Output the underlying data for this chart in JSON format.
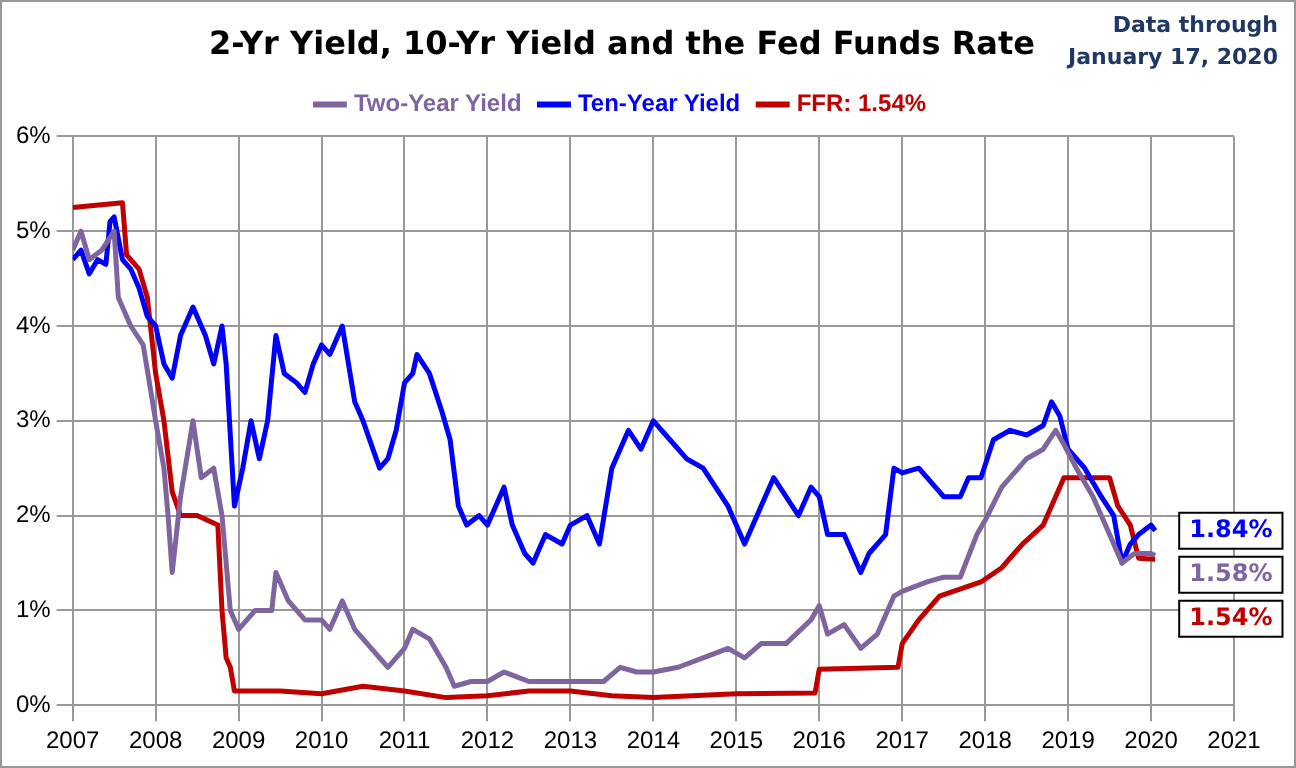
{
  "chart_data": {
    "type": "line",
    "title": "2-Yr Yield, 10-Yr Yield and the Fed Funds Rate",
    "xlim": [
      2007,
      2021
    ],
    "xticks": [
      2007,
      2008,
      2009,
      2010,
      2011,
      2012,
      2013,
      2014,
      2015,
      2016,
      2017,
      2018,
      2019,
      2020,
      2021
    ],
    "ylim": [
      0,
      6
    ],
    "yticks": [
      {
        "value": 0,
        "label": "0%"
      },
      {
        "value": 1,
        "label": "1%"
      },
      {
        "value": 2,
        "label": "2%"
      },
      {
        "value": 3,
        "label": "3%"
      },
      {
        "value": 4,
        "label": "4%"
      },
      {
        "value": 5,
        "label": "5%"
      },
      {
        "value": 6,
        "label": "6%"
      }
    ],
    "grid": true,
    "legend": "top",
    "marker": "none",
    "line_style": "solid",
    "annotations": [
      "Data through January 17, 2020"
    ],
    "series": [
      {
        "name": "Two-Year Yield",
        "color": "#7f659f",
        "x": [
          2007.0,
          2007.1,
          2007.2,
          2007.35,
          2007.5,
          2007.55,
          2007.7,
          2007.85,
          2008.0,
          2008.1,
          2008.15,
          2008.2,
          2008.3,
          2008.45,
          2008.55,
          2008.7,
          2008.8,
          2008.9,
          2009.0,
          2009.2,
          2009.4,
          2009.45,
          2009.6,
          2009.8,
          2010.0,
          2010.1,
          2010.25,
          2010.4,
          2010.6,
          2010.8,
          2011.0,
          2011.1,
          2011.3,
          2011.5,
          2011.6,
          2011.8,
          2012.0,
          2012.2,
          2012.5,
          2013.0,
          2013.4,
          2013.6,
          2013.8,
          2014.0,
          2014.3,
          2014.6,
          2014.9,
          2015.1,
          2015.3,
          2015.6,
          2015.9,
          2016.0,
          2016.1,
          2016.3,
          2016.5,
          2016.7,
          2016.9,
          2017.0,
          2017.3,
          2017.5,
          2017.7,
          2017.9,
          2018.0,
          2018.2,
          2018.5,
          2018.7,
          2018.85,
          2018.95,
          2019.1,
          2019.3,
          2019.5,
          2019.65,
          2019.8,
          2020.0,
          2020.05
        ],
        "values": [
          4.8,
          5.0,
          4.7,
          4.8,
          5.0,
          4.3,
          4.0,
          3.8,
          3.0,
          2.5,
          2.0,
          1.4,
          2.2,
          3.0,
          2.4,
          2.5,
          2.0,
          1.0,
          0.8,
          1.0,
          1.0,
          1.4,
          1.1,
          0.9,
          0.9,
          0.8,
          1.1,
          0.8,
          0.6,
          0.4,
          0.6,
          0.8,
          0.7,
          0.4,
          0.2,
          0.25,
          0.25,
          0.35,
          0.25,
          0.25,
          0.25,
          0.4,
          0.35,
          0.35,
          0.4,
          0.5,
          0.6,
          0.5,
          0.65,
          0.65,
          0.9,
          1.05,
          0.75,
          0.85,
          0.6,
          0.75,
          1.15,
          1.2,
          1.3,
          1.35,
          1.35,
          1.8,
          1.95,
          2.3,
          2.6,
          2.7,
          2.9,
          2.75,
          2.5,
          2.2,
          1.8,
          1.5,
          1.6,
          1.6,
          1.58
        ],
        "value_labels": [
          null,
          null,
          null,
          null,
          null,
          null,
          null,
          null,
          null,
          null,
          null,
          null,
          null,
          null,
          null,
          null,
          null,
          null,
          null,
          null,
          null,
          null,
          null,
          null,
          null,
          null,
          null,
          null,
          null,
          null,
          null,
          null,
          null,
          null,
          null,
          null,
          null,
          null,
          null,
          null,
          null,
          null,
          null,
          null,
          null,
          null,
          null,
          null,
          null,
          null,
          null,
          null,
          null,
          null,
          null,
          null,
          null,
          null,
          null,
          null,
          null,
          null,
          null,
          null,
          null,
          null,
          null,
          null,
          null,
          null,
          null,
          null,
          null,
          null,
          "1.58%"
        ]
      },
      {
        "name": "Ten-Year Yield",
        "color": "#0000ff",
        "x": [
          2007.0,
          2007.1,
          2007.2,
          2007.3,
          2007.4,
          2007.45,
          2007.5,
          2007.6,
          2007.7,
          2007.8,
          2007.9,
          2008.0,
          2008.1,
          2008.2,
          2008.3,
          2008.45,
          2008.6,
          2008.7,
          2008.8,
          2008.85,
          2008.95,
          2009.05,
          2009.15,
          2009.25,
          2009.35,
          2009.45,
          2009.55,
          2009.7,
          2009.8,
          2009.9,
          2010.0,
          2010.1,
          2010.25,
          2010.4,
          2010.5,
          2010.7,
          2010.8,
          2010.9,
          2011.0,
          2011.1,
          2011.15,
          2011.3,
          2011.45,
          2011.55,
          2011.65,
          2011.75,
          2011.9,
          2012.0,
          2012.2,
          2012.3,
          2012.45,
          2012.55,
          2012.7,
          2012.9,
          2013.0,
          2013.2,
          2013.35,
          2013.5,
          2013.7,
          2013.85,
          2014.0,
          2014.2,
          2014.4,
          2014.6,
          2014.75,
          2014.9,
          2015.1,
          2015.3,
          2015.45,
          2015.6,
          2015.75,
          2015.9,
          2016.0,
          2016.1,
          2016.3,
          2016.5,
          2016.6,
          2016.8,
          2016.9,
          2017.0,
          2017.2,
          2017.5,
          2017.7,
          2017.8,
          2017.95,
          2018.1,
          2018.3,
          2018.5,
          2018.7,
          2018.8,
          2018.9,
          2019.0,
          2019.2,
          2019.4,
          2019.55,
          2019.65,
          2019.75,
          2019.85,
          2020.0,
          2020.05
        ],
        "values": [
          4.7,
          4.8,
          4.55,
          4.7,
          4.65,
          5.1,
          5.15,
          4.7,
          4.6,
          4.4,
          4.1,
          4.0,
          3.6,
          3.45,
          3.9,
          4.2,
          3.9,
          3.6,
          4.0,
          3.6,
          2.1,
          2.5,
          3.0,
          2.6,
          3.0,
          3.9,
          3.5,
          3.4,
          3.3,
          3.6,
          3.8,
          3.7,
          4.0,
          3.2,
          3.0,
          2.5,
          2.6,
          2.9,
          3.4,
          3.5,
          3.7,
          3.5,
          3.1,
          2.8,
          2.1,
          1.9,
          2.0,
          1.9,
          2.3,
          1.9,
          1.6,
          1.5,
          1.8,
          1.7,
          1.9,
          2.0,
          1.7,
          2.5,
          2.9,
          2.7,
          3.0,
          2.8,
          2.6,
          2.5,
          2.3,
          2.1,
          1.7,
          2.1,
          2.4,
          2.2,
          2.0,
          2.3,
          2.2,
          1.8,
          1.8,
          1.4,
          1.6,
          1.8,
          2.5,
          2.45,
          2.5,
          2.2,
          2.2,
          2.4,
          2.4,
          2.8,
          2.9,
          2.85,
          2.95,
          3.2,
          3.05,
          2.7,
          2.5,
          2.2,
          2.0,
          1.5,
          1.7,
          1.8,
          1.9,
          1.84
        ],
        "value_labels": [
          null,
          null,
          null,
          null,
          null,
          null,
          null,
          null,
          null,
          null,
          null,
          null,
          null,
          null,
          null,
          null,
          null,
          null,
          null,
          null,
          null,
          null,
          null,
          null,
          null,
          null,
          null,
          null,
          null,
          null,
          null,
          null,
          null,
          null,
          null,
          null,
          null,
          null,
          null,
          null,
          null,
          null,
          null,
          null,
          null,
          null,
          null,
          null,
          null,
          null,
          null,
          null,
          null,
          null,
          null,
          null,
          null,
          null,
          null,
          null,
          null,
          null,
          null,
          null,
          null,
          null,
          null,
          null,
          null,
          null,
          null,
          null,
          null,
          null,
          null,
          null,
          null,
          null,
          null,
          null,
          null,
          null,
          null,
          null,
          null,
          null,
          null,
          null,
          null,
          null,
          null,
          null,
          null,
          null,
          null,
          null,
          null,
          null,
          null,
          "1.84%"
        ]
      },
      {
        "name": "FFR: 1.54%",
        "color": "#c00000",
        "x": [
          2007.0,
          2007.6,
          2007.65,
          2007.8,
          2007.9,
          2008.0,
          2008.1,
          2008.2,
          2008.3,
          2008.5,
          2008.75,
          2008.8,
          2008.85,
          2008.9,
          2008.95,
          2009.5,
          2010.0,
          2010.5,
          2011.0,
          2011.5,
          2012.0,
          2012.5,
          2013.0,
          2013.5,
          2014.0,
          2015.0,
          2015.95,
          2016.0,
          2016.95,
          2017.0,
          2017.2,
          2017.45,
          2017.95,
          2018.2,
          2018.45,
          2018.7,
          2018.95,
          2019.5,
          2019.6,
          2019.75,
          2019.85,
          2020.05
        ],
        "values": [
          5.25,
          5.3,
          4.75,
          4.6,
          4.3,
          3.5,
          3.0,
          2.25,
          2.0,
          2.0,
          1.9,
          1.0,
          0.5,
          0.4,
          0.15,
          0.15,
          0.12,
          0.2,
          0.15,
          0.08,
          0.1,
          0.15,
          0.15,
          0.1,
          0.08,
          0.12,
          0.13,
          0.38,
          0.4,
          0.65,
          0.9,
          1.15,
          1.3,
          1.45,
          1.7,
          1.9,
          2.4,
          2.4,
          2.1,
          1.9,
          1.55,
          1.54
        ],
        "value_labels": [
          null,
          null,
          null,
          null,
          null,
          null,
          null,
          null,
          null,
          null,
          null,
          null,
          null,
          null,
          null,
          null,
          null,
          null,
          null,
          null,
          null,
          null,
          null,
          null,
          null,
          null,
          null,
          null,
          null,
          null,
          null,
          null,
          null,
          null,
          null,
          null,
          null,
          null,
          null,
          null,
          null,
          "1.54%"
        ]
      }
    ]
  }
}
